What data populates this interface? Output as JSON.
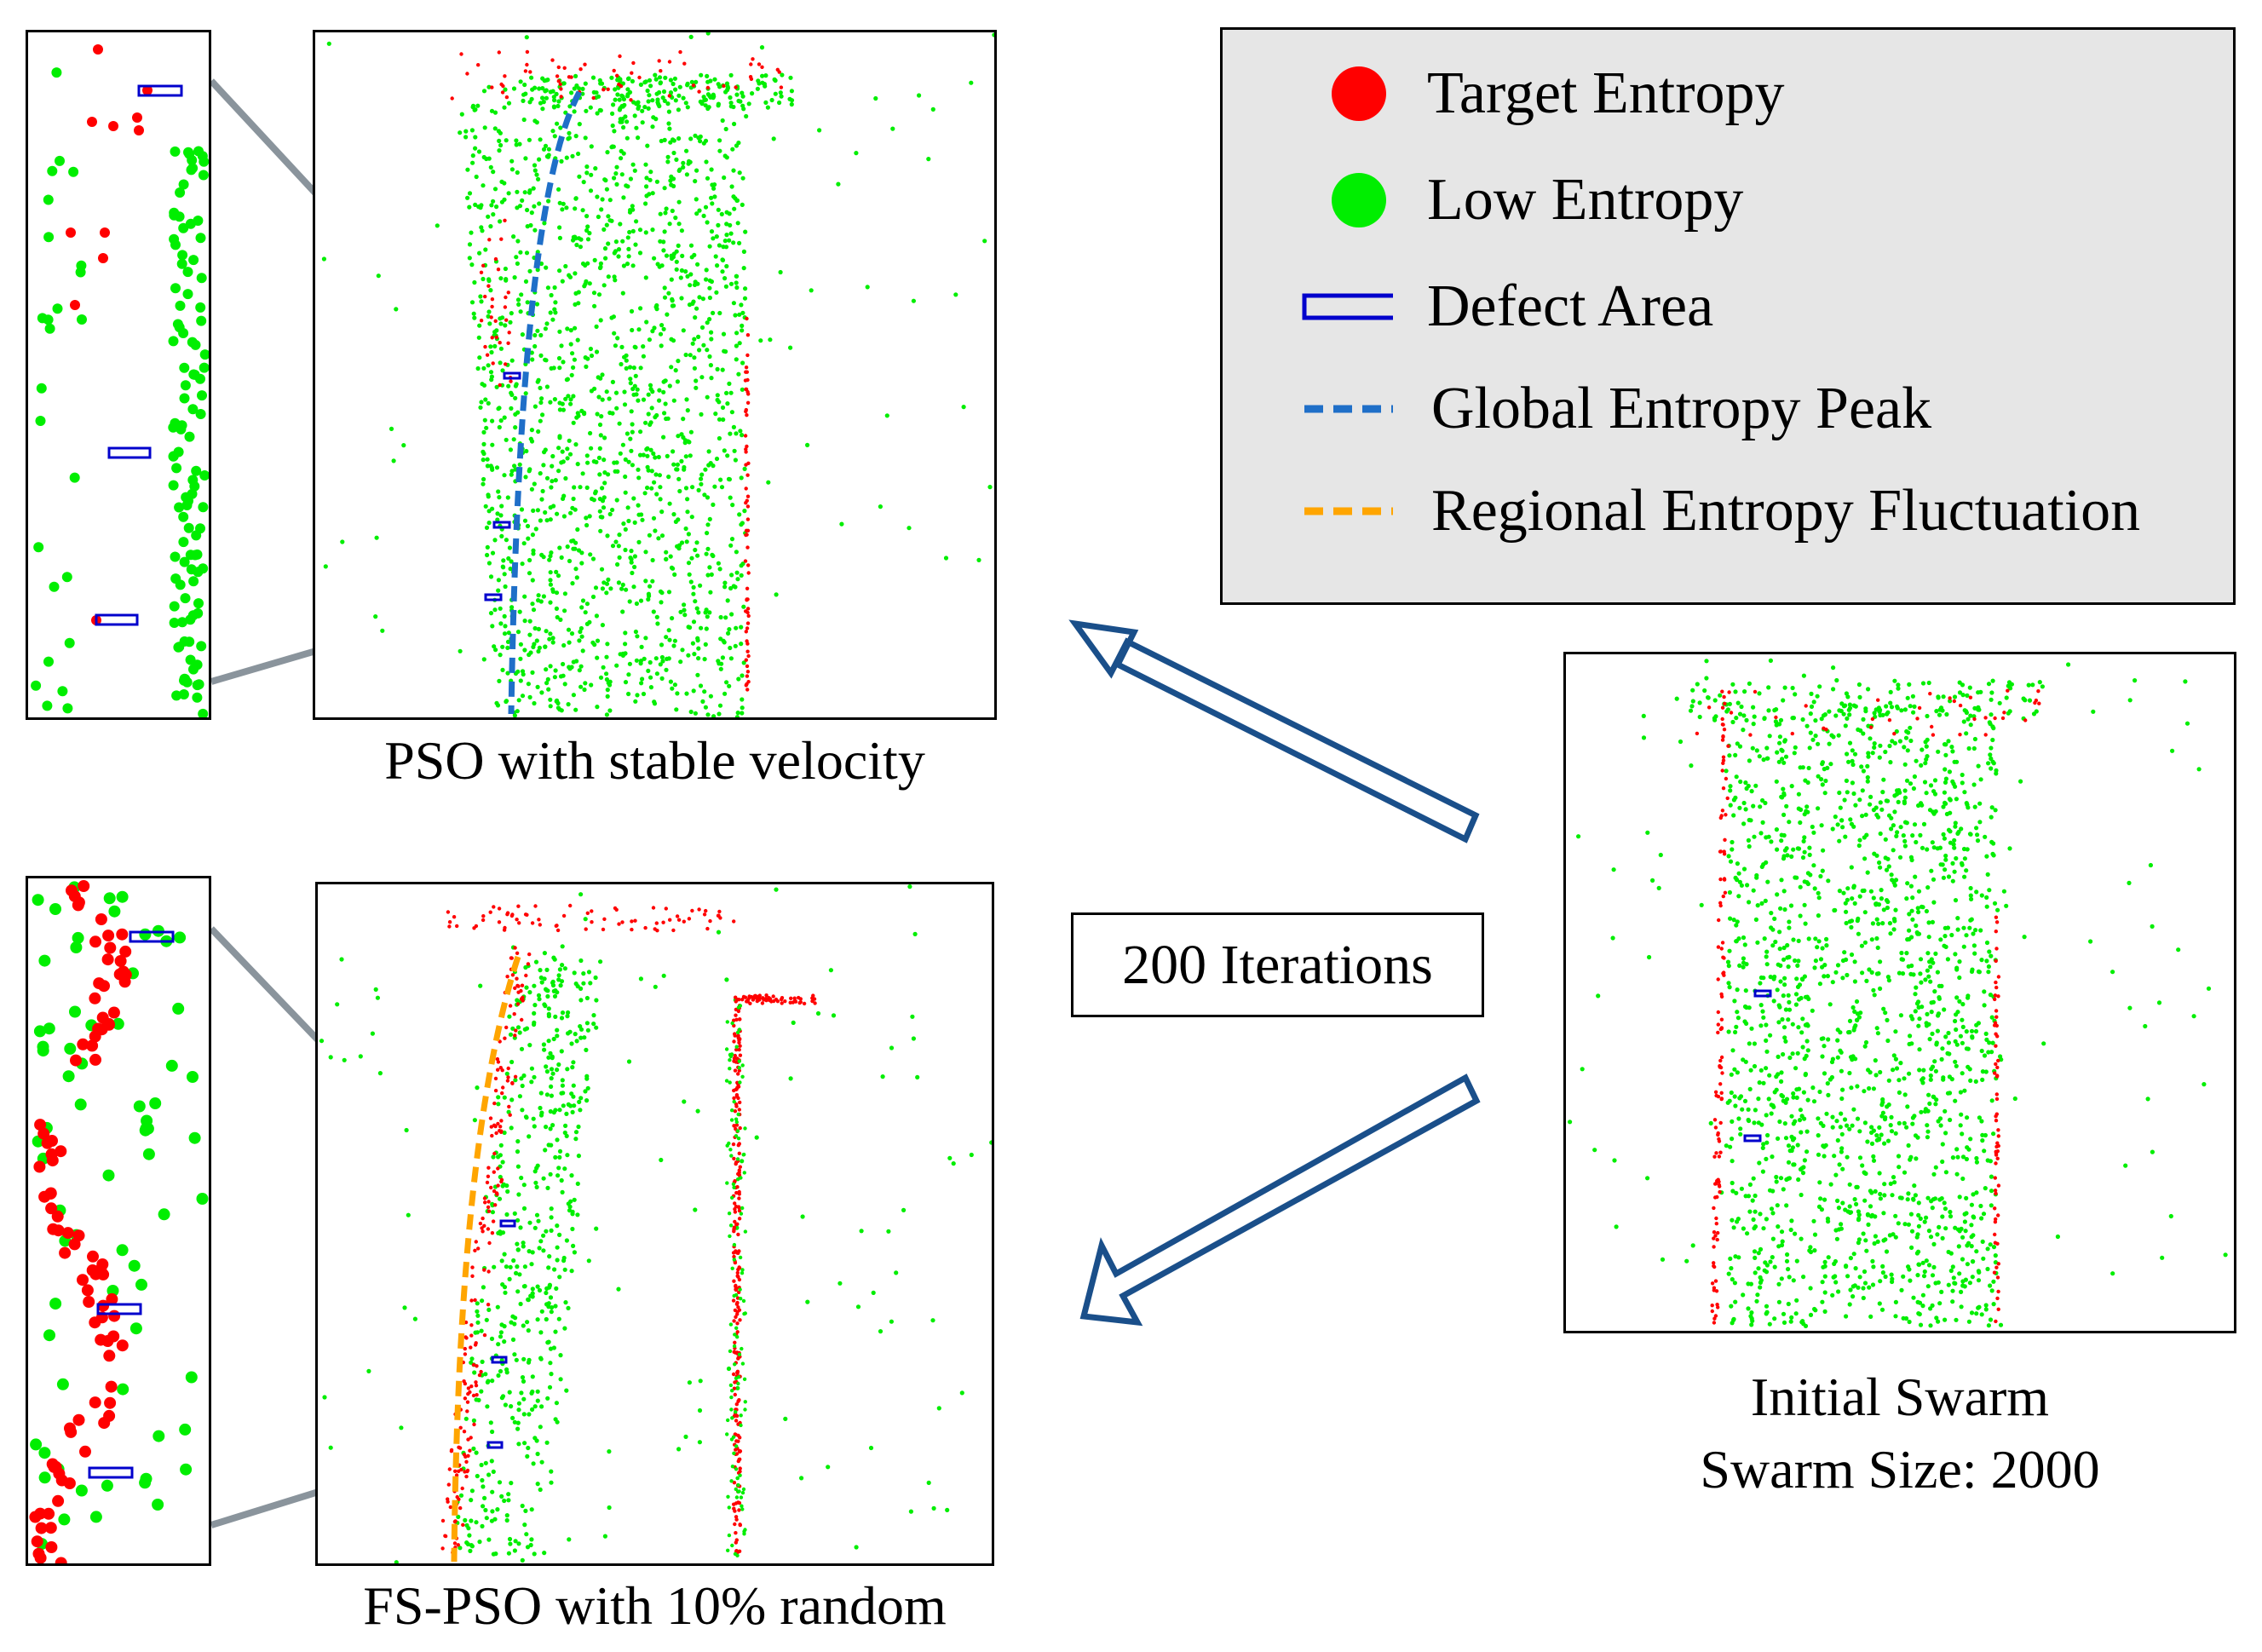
{
  "legend": {
    "items": [
      {
        "label": "Target Entropy",
        "symbol": "red-dot",
        "color": "#ff0000"
      },
      {
        "label": "Low Entropy",
        "symbol": "green-dot",
        "color": "#00ee00"
      },
      {
        "label": "Defect Area",
        "symbol": "blue-rectangle",
        "color": "#0000cc"
      },
      {
        "label": "Global Entropy Peak",
        "symbol": "blue-dashed-line",
        "color": "#1f6fc8"
      },
      {
        "label": "Regional Entropy Fluctuation",
        "symbol": "orange-dashed-line",
        "color": "#ffa500"
      }
    ]
  },
  "panels": {
    "top_caption": "PSO with stable velocity",
    "bottom_caption": "FS-PSO with 10% random",
    "initial_caption_line1": "Initial Swarm",
    "initial_caption_line2": "Swarm Size: 2000"
  },
  "iterations_label": "200 Iterations",
  "colors": {
    "target": "#ff0000",
    "low": "#00ee00",
    "defect": "#0000cc",
    "global_peak": "#1f6fc8",
    "regional": "#ffa500",
    "arrow": "#1a4f8a",
    "zoom_line": "#8a949c",
    "legend_bg": "#e6e6e6"
  }
}
